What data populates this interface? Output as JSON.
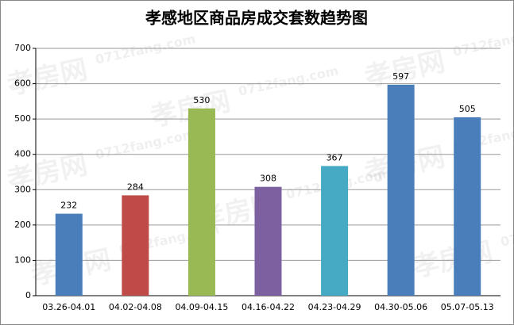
{
  "chart_data": {
    "type": "bar",
    "title": "孝感地区商品房成交套数趋势图",
    "categories": [
      "03.26-04.01",
      "04.02-04.08",
      "04.09-04.15",
      "04.16-04.22",
      "04.23-04.29",
      "04.30-05.06",
      "05.07-05.13"
    ],
    "values": [
      232,
      284,
      530,
      308,
      367,
      597,
      505
    ],
    "colors": [
      "#4a7ebb",
      "#be4b48",
      "#98b954",
      "#7d60a0",
      "#46aac5",
      "#4a7ebb",
      "#4a7ebb"
    ],
    "ylim": [
      0,
      700
    ],
    "yticks": [
      0,
      100,
      200,
      300,
      400,
      500,
      600,
      700
    ],
    "grid": true,
    "watermark": [
      "孝房网",
      "0712fang.com"
    ]
  }
}
